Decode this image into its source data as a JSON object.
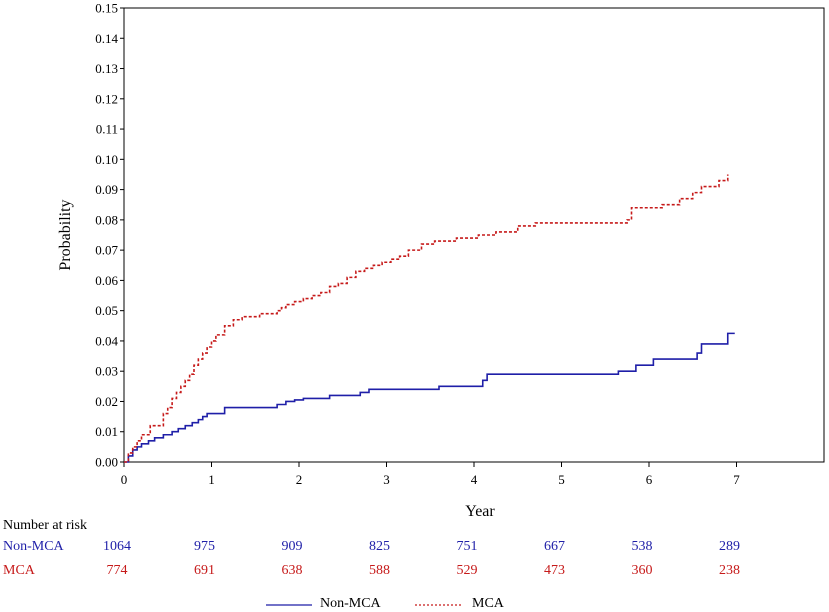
{
  "chart_data": {
    "type": "line",
    "title": "",
    "xlabel": "Year",
    "ylabel": "Probability",
    "xlim": [
      0,
      8
    ],
    "ylim": [
      0,
      0.15
    ],
    "x_ticks": [
      0,
      1,
      2,
      3,
      4,
      5,
      6,
      7
    ],
    "x_tick_labels": [
      "0",
      "1",
      "2",
      "3",
      "4",
      "5",
      "6",
      "7"
    ],
    "y_ticks": [
      0,
      0.01,
      0.02,
      0.03,
      0.04,
      0.05,
      0.06,
      0.07,
      0.08,
      0.09,
      0.1,
      0.11,
      0.12,
      0.13,
      0.14,
      0.15
    ],
    "y_tick_labels": [
      "0.00",
      "0.01",
      "0.02",
      "0.03",
      "0.04",
      "0.05",
      "0.06",
      "0.07",
      "0.08",
      "0.09",
      "0.10",
      "0.11",
      "0.12",
      "0.13",
      "0.14",
      "0.15"
    ],
    "series": [
      {
        "name": "Non-MCA",
        "color": "#1f1fa8",
        "style": "solid",
        "step": true,
        "x": [
          0,
          0.05,
          0.1,
          0.15,
          0.2,
          0.28,
          0.35,
          0.45,
          0.55,
          0.62,
          0.7,
          0.78,
          0.85,
          0.9,
          0.95,
          1.15,
          1.75,
          1.85,
          1.95,
          2.05,
          2.35,
          2.7,
          2.8,
          3.6,
          4.1,
          4.15,
          4.5,
          5.65,
          5.85,
          6.05,
          6.55,
          6.6,
          6.9,
          6.98
        ],
        "y": [
          0,
          0.002,
          0.004,
          0.005,
          0.006,
          0.007,
          0.008,
          0.009,
          0.01,
          0.011,
          0.012,
          0.013,
          0.014,
          0.015,
          0.016,
          0.018,
          0.019,
          0.02,
          0.0205,
          0.021,
          0.022,
          0.023,
          0.024,
          0.025,
          0.027,
          0.029,
          0.029,
          0.03,
          0.032,
          0.034,
          0.036,
          0.039,
          0.0425,
          0.0425
        ]
      },
      {
        "name": "MCA",
        "color": "#c61a1a",
        "style": "dashed",
        "step": true,
        "x": [
          0,
          0.05,
          0.1,
          0.15,
          0.2,
          0.3,
          0.45,
          0.5,
          0.55,
          0.6,
          0.65,
          0.7,
          0.75,
          0.8,
          0.85,
          0.9,
          0.95,
          1.0,
          1.05,
          1.15,
          1.25,
          1.35,
          1.55,
          1.75,
          1.8,
          1.85,
          1.95,
          2.05,
          2.15,
          2.25,
          2.35,
          2.45,
          2.55,
          2.65,
          2.75,
          2.85,
          2.95,
          3.05,
          3.15,
          3.25,
          3.4,
          3.55,
          3.8,
          4.05,
          4.25,
          4.5,
          4.7,
          5.75,
          5.8,
          6.15,
          6.35,
          6.5,
          6.6,
          6.8,
          6.9
        ],
        "y": [
          0,
          0.003,
          0.005,
          0.007,
          0.009,
          0.012,
          0.016,
          0.018,
          0.021,
          0.023,
          0.025,
          0.027,
          0.029,
          0.032,
          0.034,
          0.036,
          0.038,
          0.04,
          0.042,
          0.045,
          0.047,
          0.048,
          0.049,
          0.05,
          0.051,
          0.052,
          0.053,
          0.054,
          0.055,
          0.056,
          0.058,
          0.059,
          0.061,
          0.063,
          0.064,
          0.065,
          0.066,
          0.067,
          0.068,
          0.07,
          0.072,
          0.073,
          0.074,
          0.075,
          0.076,
          0.078,
          0.079,
          0.08,
          0.084,
          0.085,
          0.087,
          0.089,
          0.091,
          0.093,
          0.095
        ]
      }
    ],
    "number_at_risk": {
      "title": "Number at risk",
      "times": [
        0,
        1,
        2,
        3,
        4,
        5,
        6,
        7
      ],
      "rows": [
        {
          "label": "Non-MCA",
          "color": "#1f1fa8",
          "values": [
            "1064",
            "975",
            "909",
            "825",
            "751",
            "667",
            "538",
            "289"
          ]
        },
        {
          "label": "MCA",
          "color": "#c61a1a",
          "values": [
            "774",
            "691",
            "638",
            "588",
            "529",
            "473",
            "360",
            "238"
          ]
        }
      ]
    },
    "legend": {
      "position": "bottom",
      "entries": [
        {
          "label": "Non-MCA",
          "color": "#1f1fa8",
          "style": "solid"
        },
        {
          "label": "MCA",
          "color": "#c61a1a",
          "style": "dashed"
        }
      ]
    }
  }
}
